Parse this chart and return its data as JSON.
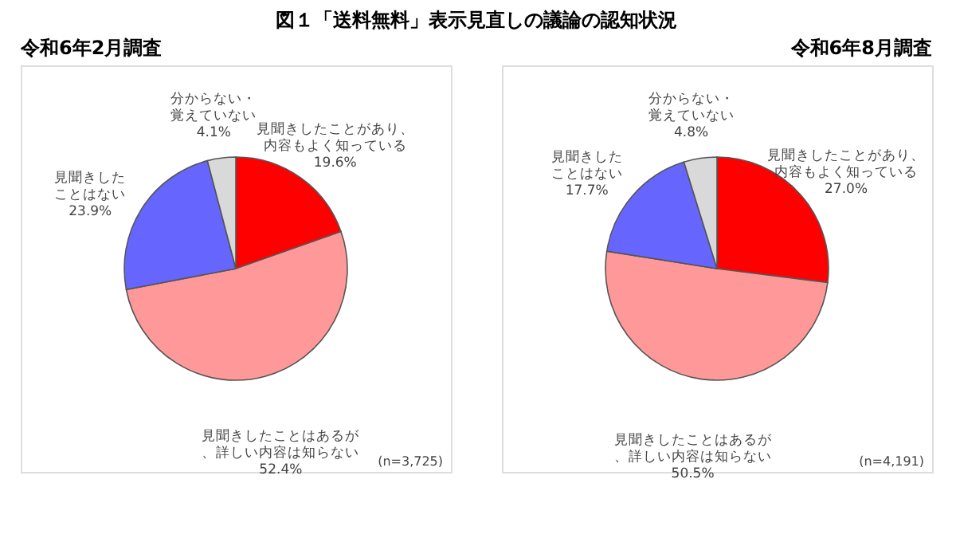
{
  "chart_data": [
    {
      "type": "pie",
      "title": "図１「送料無料」表示見直しの議論の認知状況",
      "subtitle": "令和6年2月調査",
      "categories": [
        "見聞きしたことがあり、内容もよく知っている",
        "見聞きしたことはあるが、詳しい内容は知らない",
        "見聞きしたことはない",
        "分からない・覚えていない"
      ],
      "values": [
        19.6,
        52.4,
        23.9,
        4.1
      ],
      "value_labels": [
        "19.6%",
        "52.4%",
        "23.9%",
        "4.1%"
      ],
      "colors": [
        "#ff0000",
        "#ff9999",
        "#6666ff",
        "#d9d9d9"
      ],
      "annotations": [
        "(n=3,725)"
      ],
      "legend": false
    },
    {
      "type": "pie",
      "subtitle": "令和6年8月調査",
      "categories": [
        "見聞きしたことがあり、内容もよく知っている",
        "見聞きしたことはあるが、詳しい内容は知らない",
        "見聞きしたことはない",
        "分からない・覚えていない"
      ],
      "values": [
        27.0,
        50.5,
        17.7,
        4.8
      ],
      "value_labels": [
        "27.0%",
        "50.5%",
        "17.7%",
        "4.8%"
      ],
      "colors": [
        "#ff0000",
        "#ff9999",
        "#6666ff",
        "#d9d9d9"
      ],
      "annotations": [
        "(n=4,191)"
      ],
      "legend": false
    }
  ]
}
